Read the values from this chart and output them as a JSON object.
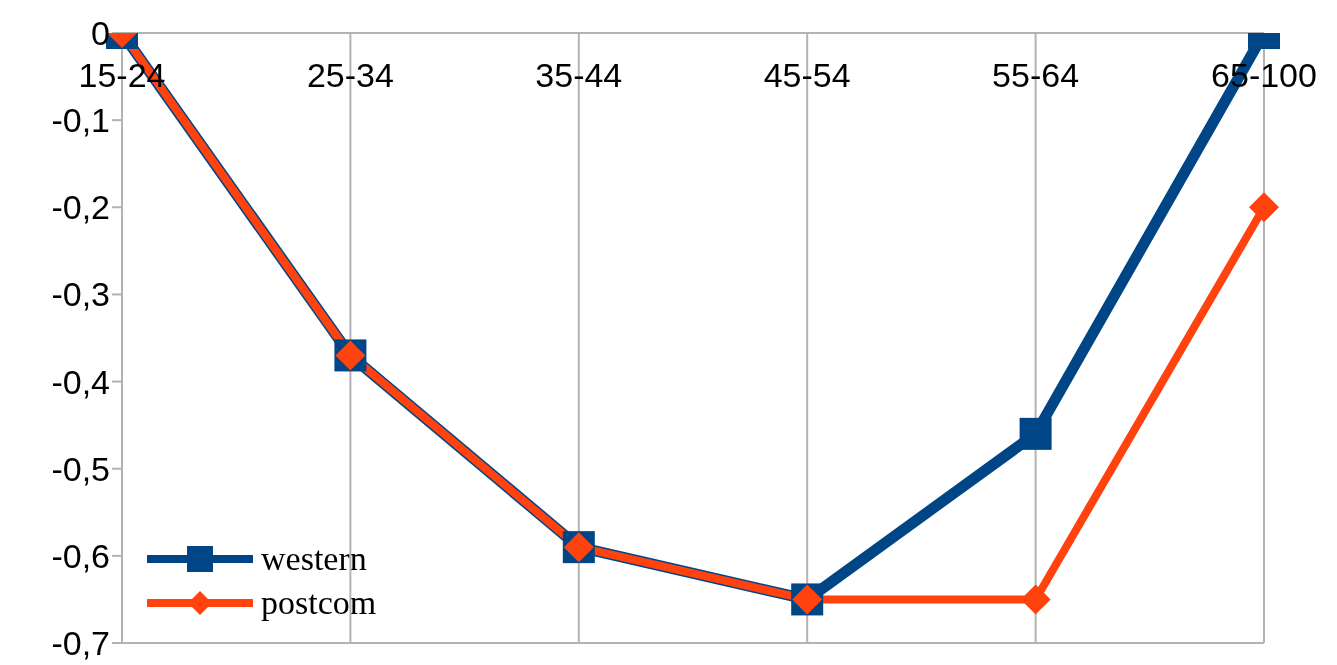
{
  "chart_data": {
    "type": "line",
    "categories": [
      "15-24",
      "25-34",
      "35-44",
      "45-54",
      "55-64",
      "65-100"
    ],
    "series": [
      {
        "name": "western",
        "color": "#004586",
        "marker": "square",
        "values": [
          0,
          -0.37,
          -0.59,
          -0.65,
          -0.46,
          0
        ]
      },
      {
        "name": "postcom",
        "color": "#ff420e",
        "marker": "diamond",
        "values": [
          0,
          -0.37,
          -0.59,
          -0.65,
          -0.65,
          -0.2
        ]
      }
    ],
    "ylim": [
      -0.7,
      0
    ],
    "yticks": [
      0,
      {
        "value": -0.1,
        "label": "-0,1"
      },
      {
        "value": -0.2,
        "label": "-0,2"
      },
      {
        "value": -0.3,
        "label": "-0,3"
      },
      {
        "value": -0.4,
        "label": "-0,4"
      },
      {
        "value": -0.5,
        "label": "-0,5"
      },
      {
        "value": -0.6,
        "label": "-0,6"
      },
      {
        "value": -0.7,
        "label": "-0,7"
      }
    ],
    "grid": true,
    "legend": "bottom left",
    "line_style": "solid"
  }
}
